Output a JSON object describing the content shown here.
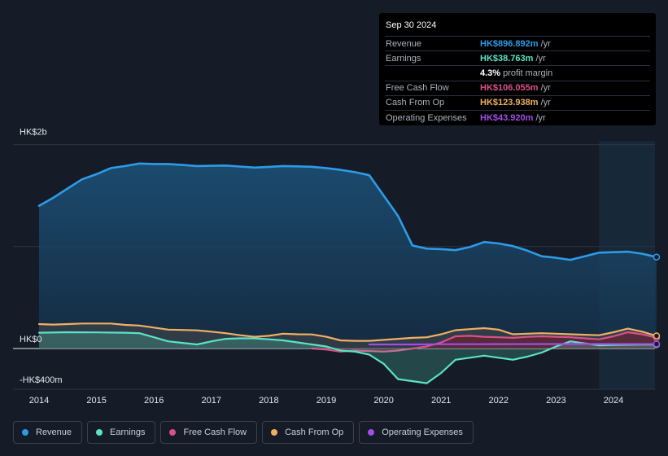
{
  "tooltip": {
    "date": "Sep 30 2024",
    "rows": [
      {
        "label": "Revenue",
        "value": "HK$896.892m",
        "unit": "/yr",
        "color": "#2d9be8"
      },
      {
        "label": "Earnings",
        "value": "HK$38.763m",
        "unit": "/yr",
        "color": "#5ae3c6"
      },
      {
        "label": "",
        "value": "4.3%",
        "unit": "profit margin",
        "color": "#ffffff"
      },
      {
        "label": "Free Cash Flow",
        "value": "HK$106.055m",
        "unit": "/yr",
        "color": "#d9518a"
      },
      {
        "label": "Cash From Op",
        "value": "HK$123.938m",
        "unit": "/yr",
        "color": "#f0b063"
      },
      {
        "label": "Operating Expenses",
        "value": "HK$43.920m",
        "unit": "/yr",
        "color": "#a24de8"
      }
    ]
  },
  "legend": [
    {
      "label": "Revenue",
      "color": "#2d9be8"
    },
    {
      "label": "Earnings",
      "color": "#5ae3c6"
    },
    {
      "label": "Free Cash Flow",
      "color": "#d9518a"
    },
    {
      "label": "Cash From Op",
      "color": "#f0b063"
    },
    {
      "label": "Operating Expenses",
      "color": "#a24de8"
    }
  ],
  "chart_data": {
    "type": "area",
    "y_tick_labels": [
      "HK$2b",
      "HK$0",
      "-HK$400m"
    ],
    "y_tick_values": [
      2000,
      0,
      -400
    ],
    "ylim": [
      -400,
      2000
    ],
    "xlim": [
      2013.85,
      2024.75
    ],
    "x_tick_labels": [
      "2014",
      "2015",
      "2016",
      "2017",
      "2018",
      "2019",
      "2020",
      "2021",
      "2022",
      "2023",
      "2024"
    ],
    "x_tick_values": [
      2014,
      2015,
      2016,
      2017,
      2018,
      2019,
      2020,
      2021,
      2022,
      2023,
      2024
    ],
    "highlight_range": [
      2023.75,
      2024.75
    ],
    "grid": "horizontal",
    "series": [
      {
        "name": "Revenue",
        "color": "#2d9be8",
        "fill": true,
        "points": [
          [
            2014,
            1400
          ],
          [
            2014.25,
            1480
          ],
          [
            2014.5,
            1570
          ],
          [
            2014.75,
            1660
          ],
          [
            2015,
            1710
          ],
          [
            2015.25,
            1770
          ],
          [
            2015.5,
            1790
          ],
          [
            2015.75,
            1815
          ],
          [
            2016,
            1810
          ],
          [
            2016.25,
            1810
          ],
          [
            2016.5,
            1800
          ],
          [
            2016.75,
            1790
          ],
          [
            2017,
            1792
          ],
          [
            2017.25,
            1795
          ],
          [
            2017.5,
            1785
          ],
          [
            2017.75,
            1775
          ],
          [
            2018,
            1782
          ],
          [
            2018.25,
            1790
          ],
          [
            2018.5,
            1787
          ],
          [
            2018.75,
            1783
          ],
          [
            2019,
            1770
          ],
          [
            2019.25,
            1752
          ],
          [
            2019.5,
            1730
          ],
          [
            2019.75,
            1700
          ],
          [
            2020,
            1500
          ],
          [
            2020.25,
            1300
          ],
          [
            2020.5,
            1010
          ],
          [
            2020.75,
            980
          ],
          [
            2021,
            975
          ],
          [
            2021.25,
            965
          ],
          [
            2021.5,
            995
          ],
          [
            2021.75,
            1045
          ],
          [
            2022,
            1030
          ],
          [
            2022.25,
            1005
          ],
          [
            2022.5,
            960
          ],
          [
            2022.75,
            905
          ],
          [
            2023,
            890
          ],
          [
            2023.25,
            870
          ],
          [
            2023.5,
            905
          ],
          [
            2023.75,
            940
          ],
          [
            2024,
            945
          ],
          [
            2024.25,
            950
          ],
          [
            2024.5,
            930
          ],
          [
            2024.75,
            897
          ]
        ]
      },
      {
        "name": "Earnings",
        "color": "#5ae3c6",
        "fill": true,
        "points": [
          [
            2014,
            155
          ],
          [
            2014.5,
            160
          ],
          [
            2015,
            158
          ],
          [
            2015.5,
            155
          ],
          [
            2015.75,
            150
          ],
          [
            2016,
            110
          ],
          [
            2016.25,
            70
          ],
          [
            2016.5,
            55
          ],
          [
            2016.75,
            40
          ],
          [
            2017,
            70
          ],
          [
            2017.25,
            95
          ],
          [
            2017.5,
            100
          ],
          [
            2017.75,
            100
          ],
          [
            2018,
            90
          ],
          [
            2018.25,
            80
          ],
          [
            2018.5,
            60
          ],
          [
            2018.75,
            40
          ],
          [
            2019,
            20
          ],
          [
            2019.25,
            -20
          ],
          [
            2019.5,
            -30
          ],
          [
            2019.75,
            -60
          ],
          [
            2020,
            -150
          ],
          [
            2020.25,
            -300
          ],
          [
            2020.5,
            -320
          ],
          [
            2020.75,
            -340
          ],
          [
            2021,
            -240
          ],
          [
            2021.25,
            -110
          ],
          [
            2021.5,
            -90
          ],
          [
            2021.75,
            -70
          ],
          [
            2022,
            -90
          ],
          [
            2022.25,
            -110
          ],
          [
            2022.5,
            -80
          ],
          [
            2022.75,
            -40
          ],
          [
            2023,
            20
          ],
          [
            2023.25,
            70
          ],
          [
            2023.5,
            50
          ],
          [
            2023.75,
            30
          ],
          [
            2024,
            35
          ],
          [
            2024.5,
            38
          ],
          [
            2024.75,
            39
          ]
        ]
      },
      {
        "name": "Free Cash Flow",
        "color": "#d9518a",
        "fill": true,
        "points": [
          [
            2018.75,
            0
          ],
          [
            2019,
            -10
          ],
          [
            2019.25,
            -30
          ],
          [
            2019.5,
            -20
          ],
          [
            2019.75,
            -25
          ],
          [
            2020,
            -30
          ],
          [
            2020.25,
            -20
          ],
          [
            2020.5,
            0
          ],
          [
            2020.75,
            20
          ],
          [
            2021,
            60
          ],
          [
            2021.25,
            120
          ],
          [
            2021.5,
            125
          ],
          [
            2021.75,
            115
          ],
          [
            2022,
            110
          ],
          [
            2022.25,
            105
          ],
          [
            2022.5,
            115
          ],
          [
            2022.75,
            120
          ],
          [
            2023,
            115
          ],
          [
            2023.25,
            110
          ],
          [
            2023.5,
            100
          ],
          [
            2023.75,
            90
          ],
          [
            2024,
            120
          ],
          [
            2024.25,
            160
          ],
          [
            2024.5,
            140
          ],
          [
            2024.75,
            106
          ]
        ]
      },
      {
        "name": "Cash From Op",
        "color": "#f0b063",
        "fill": true,
        "points": [
          [
            2014,
            240
          ],
          [
            2014.25,
            235
          ],
          [
            2014.5,
            240
          ],
          [
            2014.75,
            245
          ],
          [
            2015,
            245
          ],
          [
            2015.25,
            245
          ],
          [
            2015.5,
            232
          ],
          [
            2015.75,
            225
          ],
          [
            2016,
            205
          ],
          [
            2016.25,
            185
          ],
          [
            2016.5,
            182
          ],
          [
            2016.75,
            178
          ],
          [
            2017,
            165
          ],
          [
            2017.25,
            150
          ],
          [
            2017.5,
            130
          ],
          [
            2017.75,
            115
          ],
          [
            2018,
            125
          ],
          [
            2018.25,
            145
          ],
          [
            2018.5,
            140
          ],
          [
            2018.75,
            138
          ],
          [
            2019,
            115
          ],
          [
            2019.25,
            80
          ],
          [
            2019.5,
            75
          ],
          [
            2019.75,
            75
          ],
          [
            2020,
            85
          ],
          [
            2020.25,
            95
          ],
          [
            2020.5,
            105
          ],
          [
            2020.75,
            110
          ],
          [
            2021,
            140
          ],
          [
            2021.25,
            180
          ],
          [
            2021.5,
            190
          ],
          [
            2021.75,
            200
          ],
          [
            2022,
            185
          ],
          [
            2022.25,
            140
          ],
          [
            2022.5,
            145
          ],
          [
            2022.75,
            150
          ],
          [
            2023,
            145
          ],
          [
            2023.25,
            140
          ],
          [
            2023.5,
            135
          ],
          [
            2023.75,
            130
          ],
          [
            2024,
            160
          ],
          [
            2024.25,
            195
          ],
          [
            2024.5,
            165
          ],
          [
            2024.75,
            124
          ]
        ]
      },
      {
        "name": "Operating Expenses",
        "color": "#a24de8",
        "fill": false,
        "points": [
          [
            2019.75,
            40
          ],
          [
            2020.5,
            40
          ],
          [
            2021,
            42
          ],
          [
            2022,
            43
          ],
          [
            2023,
            44
          ],
          [
            2023.5,
            45
          ],
          [
            2024,
            44
          ],
          [
            2024.75,
            44
          ]
        ]
      }
    ]
  }
}
